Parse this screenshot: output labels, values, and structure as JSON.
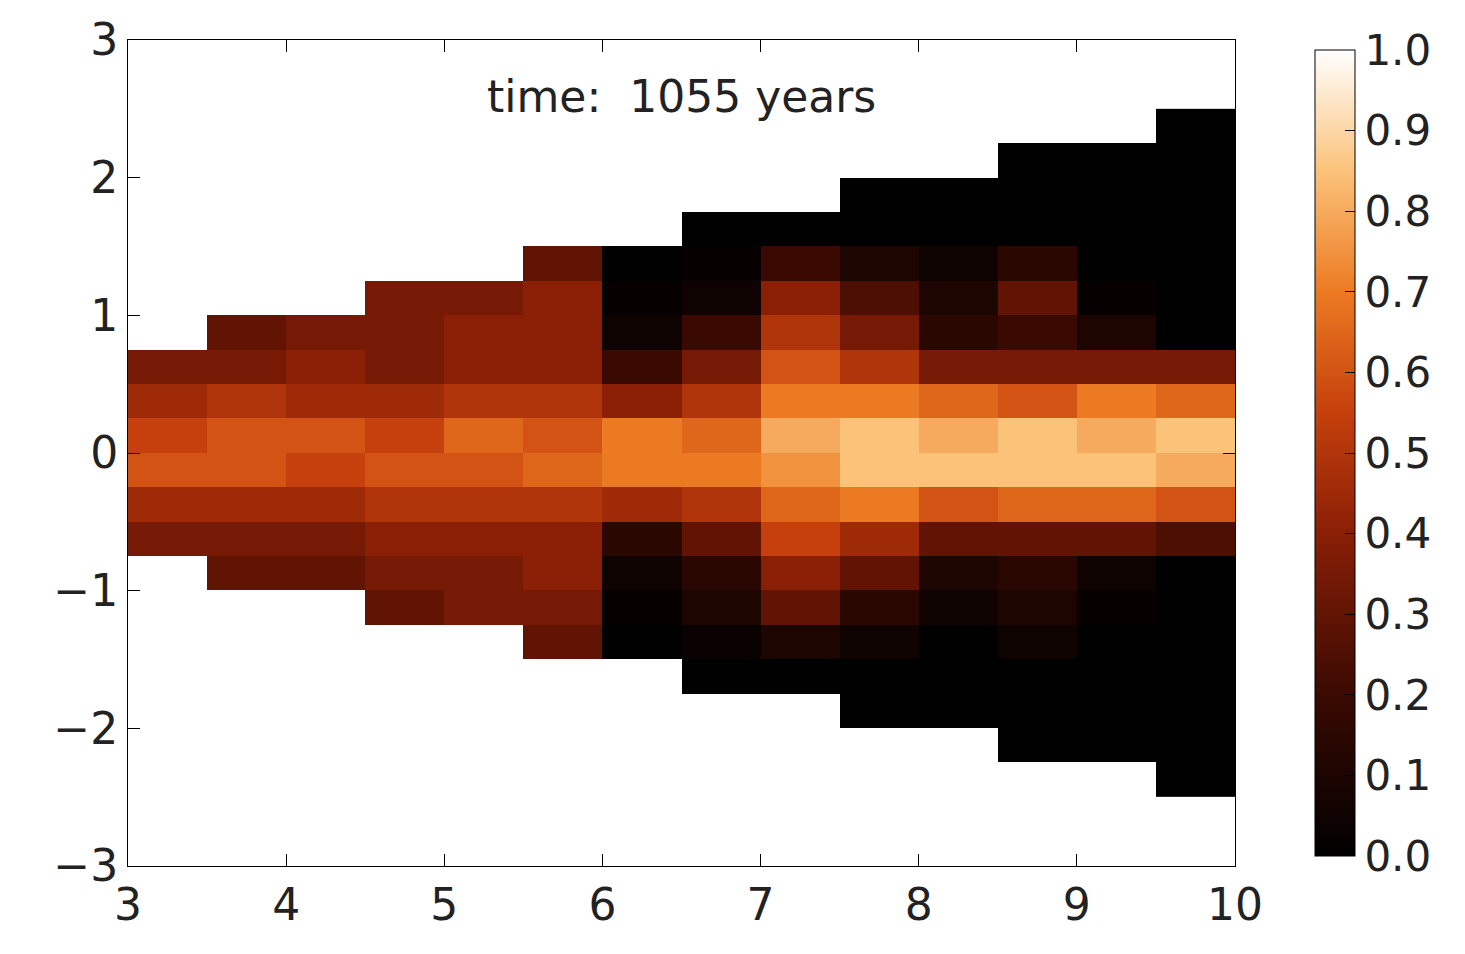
{
  "chart_data": {
    "type": "heatmap",
    "annotation": "time:  1055 years",
    "x": [
      3.25,
      3.75,
      4.25,
      4.75,
      5.25,
      5.75,
      6.25,
      6.75,
      7.25,
      7.75,
      8.25,
      8.75,
      9.25,
      9.75
    ],
    "y": [
      -2.375,
      -2.125,
      -1.875,
      -1.625,
      -1.375,
      -1.125,
      -0.875,
      -0.625,
      -0.375,
      -0.125,
      0.125,
      0.375,
      0.625,
      0.875,
      1.125,
      1.375,
      1.625,
      1.875,
      2.125,
      2.375
    ],
    "z": [
      [
        null,
        null,
        null,
        null,
        null,
        null,
        null,
        null,
        null,
        null,
        null,
        null,
        null,
        0.0
      ],
      [
        null,
        null,
        null,
        null,
        null,
        null,
        null,
        null,
        null,
        null,
        null,
        0.0,
        0.0,
        0.0
      ],
      [
        null,
        null,
        null,
        null,
        null,
        null,
        null,
        null,
        null,
        0.0,
        0.0,
        0.0,
        0.0,
        0.0
      ],
      [
        null,
        null,
        null,
        null,
        null,
        null,
        null,
        0.0,
        0.0,
        0.0,
        0.0,
        0.0,
        0.0,
        0.0
      ],
      [
        null,
        null,
        null,
        null,
        null,
        0.3,
        0.0,
        0.03,
        0.1,
        0.05,
        0.0,
        0.05,
        0.0,
        0.0
      ],
      [
        null,
        null,
        null,
        0.3,
        0.35,
        0.35,
        0.02,
        0.1,
        0.3,
        0.15,
        0.05,
        0.1,
        0.02,
        0.0
      ],
      [
        null,
        0.3,
        0.3,
        0.35,
        0.35,
        0.4,
        0.05,
        0.15,
        0.4,
        0.3,
        0.1,
        0.15,
        0.05,
        0.0
      ],
      [
        0.35,
        0.35,
        0.35,
        0.4,
        0.4,
        0.4,
        0.15,
        0.3,
        0.55,
        0.45,
        0.3,
        0.3,
        0.3,
        0.25
      ],
      [
        0.45,
        0.45,
        0.45,
        0.5,
        0.5,
        0.5,
        0.45,
        0.5,
        0.65,
        0.7,
        0.6,
        0.65,
        0.65,
        0.6
      ],
      [
        0.6,
        0.6,
        0.55,
        0.6,
        0.6,
        0.65,
        0.7,
        0.7,
        0.75,
        0.85,
        0.85,
        0.85,
        0.85,
        0.8
      ],
      [
        0.55,
        0.6,
        0.6,
        0.55,
        0.65,
        0.6,
        0.7,
        0.65,
        0.8,
        0.85,
        0.8,
        0.85,
        0.8,
        0.85
      ],
      [
        0.45,
        0.5,
        0.45,
        0.45,
        0.5,
        0.5,
        0.4,
        0.5,
        0.7,
        0.7,
        0.65,
        0.6,
        0.7,
        0.65
      ],
      [
        0.35,
        0.35,
        0.4,
        0.35,
        0.4,
        0.4,
        0.2,
        0.35,
        0.6,
        0.5,
        0.35,
        0.35,
        0.35,
        0.35
      ],
      [
        null,
        0.3,
        0.35,
        0.35,
        0.4,
        0.4,
        0.05,
        0.2,
        0.5,
        0.35,
        0.15,
        0.2,
        0.1,
        0.0
      ],
      [
        null,
        null,
        null,
        0.35,
        0.35,
        0.4,
        0.02,
        0.05,
        0.4,
        0.25,
        0.1,
        0.3,
        0.02,
        0.0
      ],
      [
        null,
        null,
        null,
        null,
        null,
        0.3,
        0.0,
        0.02,
        0.2,
        0.1,
        0.05,
        0.15,
        0.0,
        0.0
      ],
      [
        null,
        null,
        null,
        null,
        null,
        null,
        null,
        0.0,
        0.0,
        0.0,
        0.0,
        0.0,
        0.0,
        0.0
      ],
      [
        null,
        null,
        null,
        null,
        null,
        null,
        null,
        null,
        null,
        0.0,
        0.0,
        0.0,
        0.0,
        0.0
      ],
      [
        null,
        null,
        null,
        null,
        null,
        null,
        null,
        null,
        null,
        null,
        null,
        0.0,
        0.0,
        0.0
      ],
      [
        null,
        null,
        null,
        null,
        null,
        null,
        null,
        null,
        null,
        null,
        null,
        null,
        null,
        0.0
      ]
    ],
    "xlim": [
      3,
      10
    ],
    "ylim": [
      -3,
      3
    ],
    "xticks": [
      3,
      4,
      5,
      6,
      7,
      8,
      9,
      10
    ],
    "yticks": [
      {
        "value": -3,
        "label": "−3"
      },
      {
        "value": -2,
        "label": "−2"
      },
      {
        "value": -1,
        "label": "−1"
      },
      0,
      1,
      2,
      3
    ],
    "colorbar": {
      "range": [
        0,
        1
      ],
      "ticks": [
        {
          "value": 0,
          "label": "0.0"
        },
        0.1,
        0.2,
        0.3,
        0.4,
        0.5,
        0.6,
        0.7,
        0.8,
        0.9,
        {
          "value": 1,
          "label": "1.0"
        }
      ]
    },
    "grid": false
  }
}
